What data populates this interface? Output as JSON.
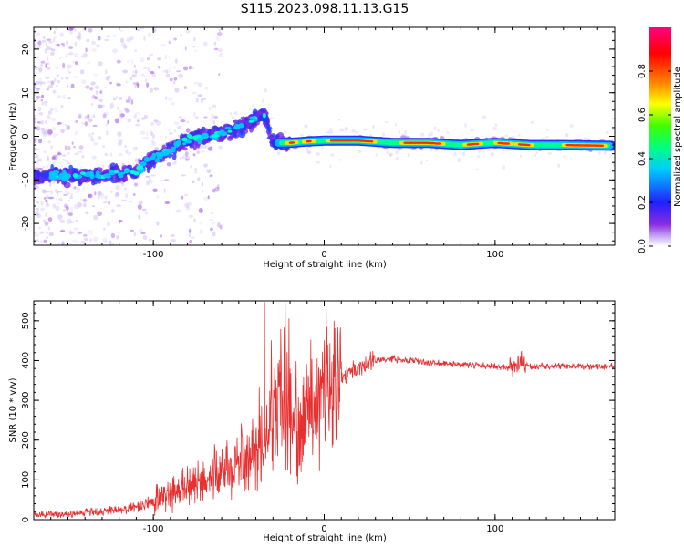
{
  "title": "S115.2023.098.11.13.G15",
  "chart_data": [
    {
      "type": "heatmap",
      "xlabel": "Height of straight line (km)",
      "ylabel": "Frequency (Hz)",
      "xlim": [
        -170,
        170
      ],
      "ylim": [
        -25,
        25
      ],
      "xticks": [
        -100,
        0,
        100
      ],
      "yticks": [
        -20,
        -10,
        0,
        10,
        20
      ],
      "colorbar": {
        "label": "Normalized spectral amplitude",
        "range": [
          0,
          1
        ],
        "ticks": [
          0.0,
          0.2,
          0.4,
          0.6,
          0.8
        ],
        "tick_labels": [
          "0.0",
          "0.2",
          "0.4",
          "0.6",
          "0.8"
        ],
        "colormap": "rainbow (purple→blue→cyan→green→yellow→red→magenta)"
      },
      "ridge": {
        "x": [
          -170,
          -150,
          -130,
          -110,
          -100,
          -90,
          -80,
          -70,
          -60,
          -50,
          -40,
          -35,
          -30,
          -25,
          -20,
          -10,
          0,
          20,
          40,
          60,
          80,
          100,
          120,
          140,
          170
        ],
        "y": [
          -9,
          -9,
          -9,
          -8,
          -5,
          -3,
          -1,
          0,
          0.5,
          2,
          4,
          5,
          -1.5,
          -1.5,
          -1.5,
          -1.2,
          -1,
          -1,
          -1.5,
          -1.5,
          -2,
          -1.5,
          -2,
          -2,
          -2.2
        ]
      }
    },
    {
      "type": "line",
      "xlabel": "Height of straight line (km)",
      "ylabel": "SNR (10 * v/v)",
      "xlim": [
        -170,
        170
      ],
      "ylim": [
        0,
        550
      ],
      "xticks": [
        -100,
        0,
        100
      ],
      "yticks": [
        0,
        100,
        200,
        300,
        400,
        500
      ],
      "color": "#e83030",
      "series": [
        {
          "x": [
            -170,
            -150,
            -130,
            -110,
            -100,
            -90,
            -80,
            -70,
            -60,
            -50,
            -40,
            -30,
            -25,
            -20,
            -10,
            0,
            10,
            20,
            30,
            40,
            60,
            80,
            100,
            110,
            115,
            120,
            140,
            160,
            170
          ],
          "values": [
            12,
            15,
            20,
            30,
            45,
            65,
            80,
            100,
            120,
            140,
            180,
            250,
            300,
            240,
            280,
            330,
            360,
            385,
            400,
            405,
            395,
            390,
            385,
            380,
            395,
            385,
            385,
            385,
            385
          ]
        }
      ]
    }
  ]
}
